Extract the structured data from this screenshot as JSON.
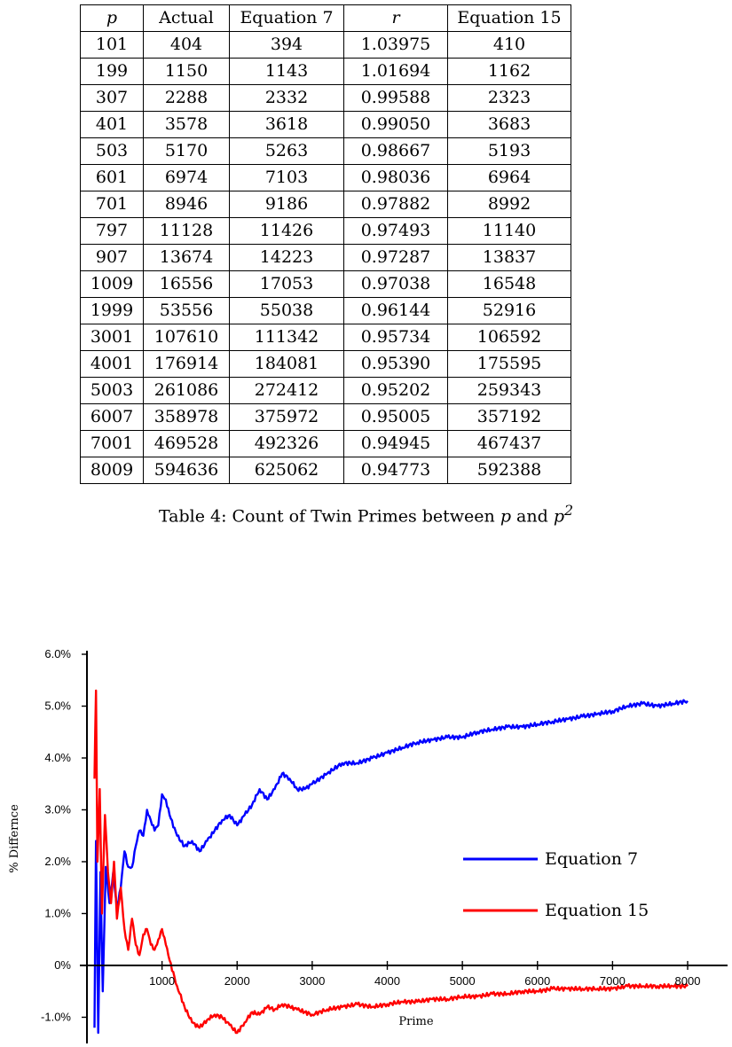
{
  "table": {
    "headers": [
      "p",
      "Actual",
      "Equation 7",
      "r",
      "Equation 15"
    ],
    "rows": [
      [
        "101",
        "404",
        "394",
        "1.03975",
        "410"
      ],
      [
        "199",
        "1150",
        "1143",
        "1.01694",
        "1162"
      ],
      [
        "307",
        "2288",
        "2332",
        "0.99588",
        "2323"
      ],
      [
        "401",
        "3578",
        "3618",
        "0.99050",
        "3683"
      ],
      [
        "503",
        "5170",
        "5263",
        "0.98667",
        "5193"
      ],
      [
        "601",
        "6974",
        "7103",
        "0.98036",
        "6964"
      ],
      [
        "701",
        "8946",
        "9186",
        "0.97882",
        "8992"
      ],
      [
        "797",
        "11128",
        "11426",
        "0.97493",
        "11140"
      ],
      [
        "907",
        "13674",
        "14223",
        "0.97287",
        "13837"
      ],
      [
        "1009",
        "16556",
        "17053",
        "0.97038",
        "16548"
      ],
      [
        "1999",
        "53556",
        "55038",
        "0.96144",
        "52916"
      ],
      [
        "3001",
        "107610",
        "111342",
        "0.95734",
        "106592"
      ],
      [
        "4001",
        "176914",
        "184081",
        "0.95390",
        "175595"
      ],
      [
        "5003",
        "261086",
        "272412",
        "0.95202",
        "259343"
      ],
      [
        "6007",
        "358978",
        "375972",
        "0.95005",
        "357192"
      ],
      [
        "7001",
        "469528",
        "492326",
        "0.94945",
        "467437"
      ],
      [
        "8009",
        "594636",
        "625062",
        "0.94773",
        "592388"
      ]
    ]
  },
  "caption": {
    "prefix": "Table 4: Count of Twin Primes between ",
    "var1": "p",
    "middle": " and ",
    "var2": "p",
    "sup": "2"
  },
  "chart_data": {
    "type": "line",
    "xlabel": "Prime",
    "ylabel": "% Differnce",
    "xlim": [
      0,
      8000
    ],
    "ylim": [
      -1.3,
      6.0
    ],
    "x_ticks": [
      "1000",
      "2000",
      "3000",
      "4000",
      "5000",
      "6000",
      "7000",
      "8000"
    ],
    "x_tick_values": [
      1000,
      2000,
      3000,
      4000,
      5000,
      6000,
      7000,
      8000
    ],
    "y_ticks": [
      "-1.0%",
      "0%",
      "1.0%",
      "2.0%",
      "3.0%",
      "4.0%",
      "5.0%",
      "6.0%"
    ],
    "y_tick_values": [
      -1,
      0,
      1,
      2,
      3,
      4,
      5,
      6
    ],
    "legend_position": "right",
    "series": [
      {
        "name": "Equation 7",
        "color": "#0000ff",
        "x": [
          100,
          120,
          150,
          180,
          210,
          250,
          300,
          350,
          400,
          450,
          500,
          550,
          600,
          650,
          700,
          750,
          800,
          850,
          900,
          950,
          1000,
          1050,
          1100,
          1200,
          1300,
          1400,
          1500,
          1600,
          1700,
          1800,
          1900,
          2000,
          2100,
          2200,
          2300,
          2400,
          2500,
          2600,
          2700,
          2800,
          2900,
          3000,
          3200,
          3400,
          3600,
          3800,
          4000,
          4200,
          4400,
          4600,
          4800,
          5000,
          5200,
          5400,
          5600,
          5800,
          6000,
          6200,
          6400,
          6600,
          6800,
          7000,
          7200,
          7400,
          7600,
          7800,
          8000
        ],
        "y": [
          -1.2,
          2.4,
          -1.3,
          1.8,
          -0.5,
          1.9,
          1.2,
          1.8,
          1.1,
          1.5,
          2.2,
          1.9,
          1.9,
          2.3,
          2.6,
          2.5,
          3.0,
          2.8,
          2.6,
          2.7,
          3.3,
          3.2,
          2.9,
          2.5,
          2.3,
          2.4,
          2.2,
          2.4,
          2.6,
          2.8,
          2.9,
          2.7,
          2.9,
          3.1,
          3.4,
          3.2,
          3.4,
          3.7,
          3.6,
          3.4,
          3.4,
          3.5,
          3.7,
          3.9,
          3.9,
          4.0,
          4.1,
          4.2,
          4.3,
          4.35,
          4.4,
          4.4,
          4.5,
          4.55,
          4.6,
          4.6,
          4.65,
          4.7,
          4.75,
          4.8,
          4.85,
          4.9,
          5.0,
          5.05,
          5.0,
          5.05,
          5.1
        ]
      },
      {
        "name": "Equation 15",
        "color": "#ff0000",
        "x": [
          100,
          120,
          140,
          170,
          200,
          240,
          280,
          320,
          360,
          400,
          450,
          500,
          550,
          600,
          650,
          700,
          750,
          800,
          850,
          900,
          950,
          1000,
          1050,
          1100,
          1200,
          1300,
          1400,
          1500,
          1600,
          1700,
          1800,
          1900,
          2000,
          2100,
          2200,
          2300,
          2400,
          2500,
          2600,
          2700,
          2800,
          2900,
          3000,
          3200,
          3400,
          3600,
          3800,
          4000,
          4200,
          4400,
          4600,
          4800,
          5000,
          5200,
          5400,
          5600,
          5800,
          6000,
          6200,
          6400,
          6600,
          6800,
          7000,
          7200,
          7400,
          7600,
          7800,
          8000
        ],
        "y": [
          3.6,
          5.3,
          2.0,
          3.4,
          1.0,
          2.9,
          1.8,
          1.2,
          2.0,
          0.9,
          1.5,
          0.7,
          0.3,
          0.9,
          0.4,
          0.2,
          0.6,
          0.7,
          0.4,
          0.3,
          0.5,
          0.7,
          0.4,
          0.1,
          -0.4,
          -0.8,
          -1.1,
          -1.2,
          -1.05,
          -0.95,
          -1.0,
          -1.15,
          -1.3,
          -1.1,
          -0.9,
          -0.95,
          -0.8,
          -0.85,
          -0.75,
          -0.8,
          -0.85,
          -0.9,
          -0.95,
          -0.85,
          -0.8,
          -0.75,
          -0.8,
          -0.75,
          -0.7,
          -0.7,
          -0.65,
          -0.65,
          -0.6,
          -0.6,
          -0.55,
          -0.55,
          -0.5,
          -0.5,
          -0.45,
          -0.45,
          -0.45,
          -0.45,
          -0.45,
          -0.4,
          -0.4,
          -0.4,
          -0.4,
          -0.4
        ]
      }
    ]
  }
}
